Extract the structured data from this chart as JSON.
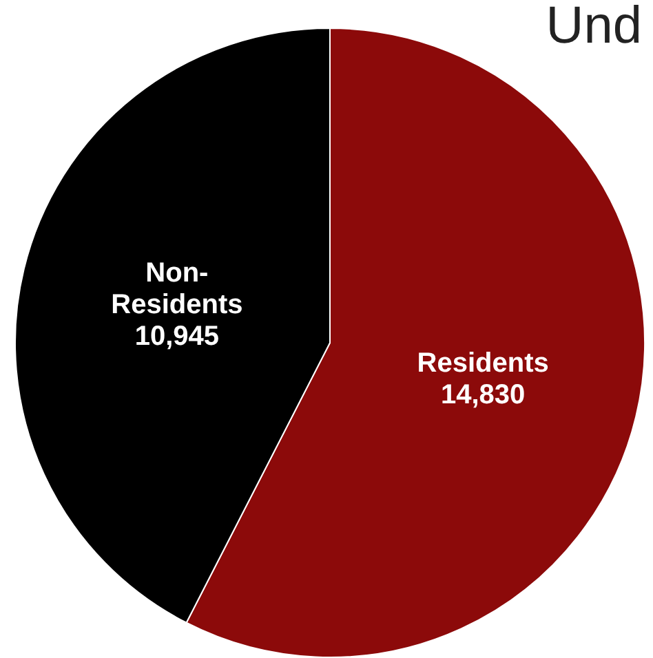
{
  "chart_data": {
    "type": "pie",
    "title": "Und",
    "categories": [
      "Residents",
      "Non-Residents"
    ],
    "values": [
      14830,
      10945
    ],
    "colors": [
      "#8c0a0a",
      "#000000"
    ],
    "value_labels": [
      "14,830",
      "10,945"
    ],
    "legend": false
  }
}
